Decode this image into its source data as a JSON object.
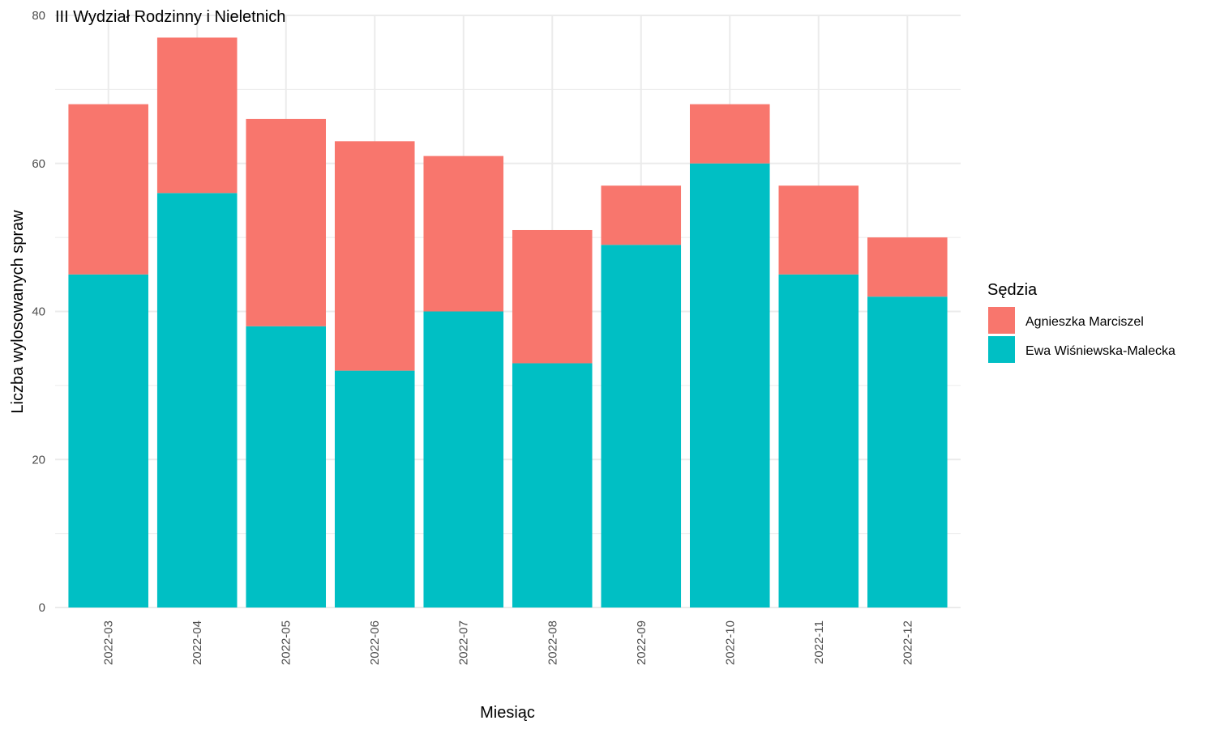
{
  "chart_data": {
    "type": "bar",
    "stacked": true,
    "title": "III Wydział Rodzinny i Nieletnich",
    "xlabel": "Miesiąc",
    "ylabel": "Liczba wylosowanych spraw",
    "ylim": [
      0,
      80
    ],
    "yticks": [
      0,
      20,
      40,
      60,
      80
    ],
    "grid": true,
    "legend_title": "Sędzia",
    "legend_position": "right",
    "categories": [
      "2022-03",
      "2022-04",
      "2022-05",
      "2022-06",
      "2022-07",
      "2022-08",
      "2022-09",
      "2022-10",
      "2022-11",
      "2022-12"
    ],
    "series": [
      {
        "name": "Ewa Wiśniewska-Malecka",
        "color": "#00BFC4",
        "values": [
          45,
          56,
          38,
          32,
          40,
          33,
          49,
          60,
          45,
          42
        ]
      },
      {
        "name": "Agnieszka Marciszel",
        "color": "#F8766D",
        "values": [
          23,
          21,
          28,
          31,
          21,
          18,
          8,
          8,
          12,
          8
        ]
      }
    ],
    "legend_order": [
      "Agnieszka Marciszel",
      "Ewa Wiśniewska-Malecka"
    ],
    "grid_color": "#ebebeb"
  }
}
